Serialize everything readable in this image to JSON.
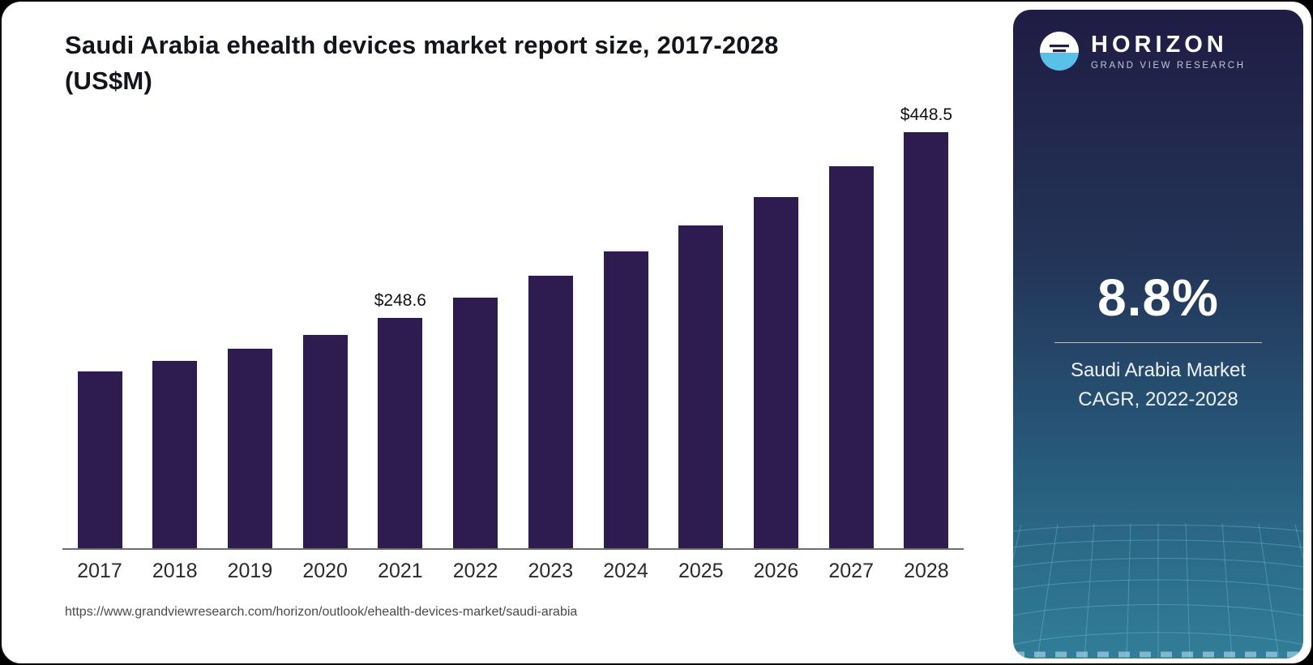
{
  "header": {
    "title_line1": "Saudi Arabia ehealth devices market report size, 2017-2028",
    "title_line2": "(US$M)"
  },
  "chart_data": {
    "type": "bar",
    "title": "Saudi Arabia ehealth devices market report size, 2017-2028 (US$M)",
    "categories": [
      "2017",
      "2018",
      "2019",
      "2020",
      "2021",
      "2022",
      "2023",
      "2024",
      "2025",
      "2026",
      "2027",
      "2028"
    ],
    "values": [
      190.5,
      202.0,
      215.0,
      230.0,
      248.6,
      270.3,
      294.1,
      320.0,
      348.2,
      378.8,
      412.2,
      448.5
    ],
    "data_labels": {
      "2021": "$248.6",
      "2028": "$448.5"
    },
    "bar_color": "#2e1b4f",
    "xlabel": "",
    "ylabel": "US$M",
    "ylim": [
      0,
      470
    ],
    "grid": false,
    "legend": "none"
  },
  "footer": {
    "source_url": "https://www.grandviewresearch.com/horizon/outlook/ehealth-devices-market/saudi-arabia"
  },
  "panel": {
    "brand_name": "HORIZON",
    "brand_subtitle": "GRAND VIEW RESEARCH",
    "stat_value": "8.8%",
    "stat_label_line1": "Saudi Arabia Market",
    "stat_label_line2": "CAGR, 2022-2028",
    "accent_color": "#58c1e9",
    "gradient_top": "#201c44",
    "gradient_bottom": "#317e99"
  }
}
